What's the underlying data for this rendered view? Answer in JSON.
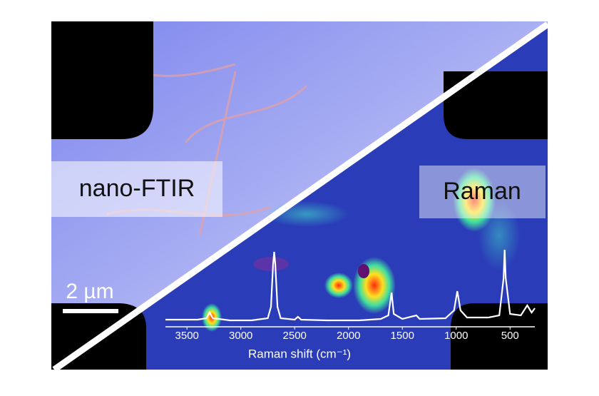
{
  "labels": {
    "left": "nano-FTIR",
    "right": "Raman"
  },
  "scale_bar": "2 µm",
  "spectrum": {
    "type": "line",
    "x_label": "Raman shift (cm⁻¹)",
    "color": "#ffffff",
    "xlim": [
      3700,
      270
    ],
    "xticks": [
      3500,
      3000,
      2500,
      2000,
      1500,
      1000,
      500
    ],
    "ylim": [
      0,
      100
    ],
    "x": [
      3700,
      3400,
      3320,
      3290,
      3260,
      3100,
      2900,
      2750,
      2720,
      2700,
      2690,
      2680,
      2660,
      2630,
      2500,
      2470,
      2440,
      2200,
      1900,
      1700,
      1630,
      1600,
      1580,
      1500,
      1370,
      1340,
      1100,
      1020,
      990,
      960,
      900,
      700,
      600,
      560,
      550,
      540,
      500,
      400,
      340,
      300,
      270
    ],
    "values": [
      2,
      2,
      4,
      12,
      4,
      1,
      1,
      4,
      20,
      80,
      97,
      80,
      20,
      4,
      2,
      6,
      2,
      1,
      1,
      3,
      8,
      40,
      10,
      3,
      8,
      3,
      4,
      15,
      42,
      15,
      5,
      5,
      8,
      60,
      100,
      60,
      10,
      8,
      22,
      12,
      18
    ]
  }
}
